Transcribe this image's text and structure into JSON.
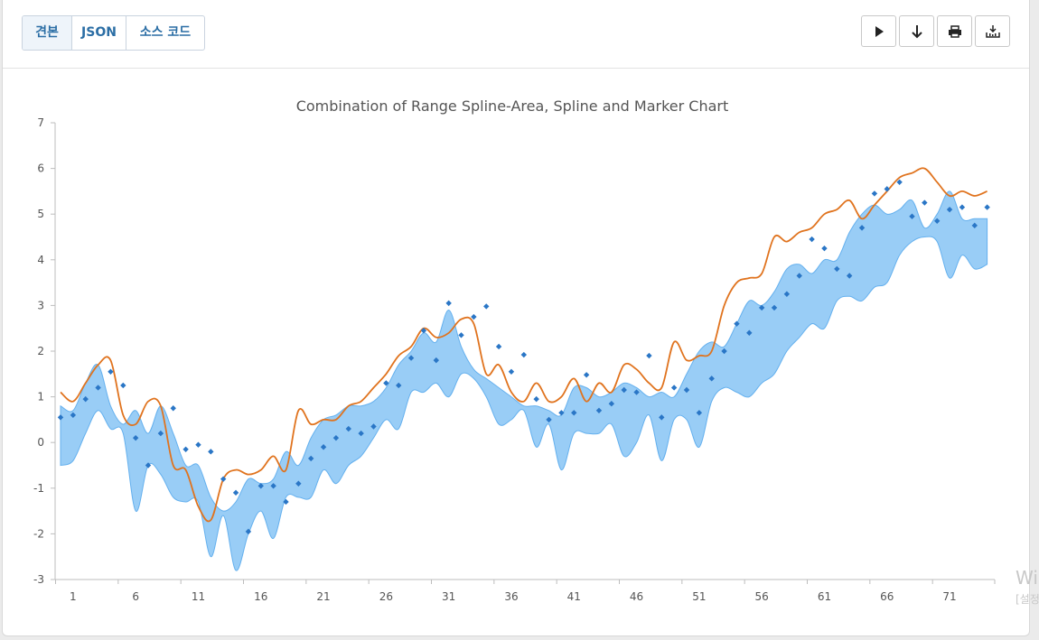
{
  "tabs": [
    {
      "label": "견본",
      "active": true
    },
    {
      "label": "JSON",
      "active": false
    },
    {
      "label": "소스 코드",
      "active": false
    }
  ],
  "toolbar": {
    "buttons": [
      {
        "name": "run-button",
        "icon": "play-icon"
      },
      {
        "name": "download-button",
        "icon": "arrow-down-icon"
      },
      {
        "name": "print-button",
        "icon": "printer-icon"
      },
      {
        "name": "export-button",
        "icon": "download-tray-icon"
      }
    ]
  },
  "watermark": {
    "line1": "Wi",
    "line2": "[설정"
  },
  "colors": {
    "area": "#99cdf6",
    "area_line": "#64b0ee",
    "spline": "#e0731e",
    "marker": "#2a76c6"
  },
  "chart_data": {
    "type": "combination",
    "title": "Combination of Range Spline-Area, Spline and Marker Chart",
    "xlim": [
      0,
      75
    ],
    "ylim": [
      -3,
      7
    ],
    "yticks": [
      -3,
      -2,
      -1,
      0,
      1,
      2,
      3,
      4,
      5,
      6,
      7
    ],
    "xticks": [
      1,
      6,
      11,
      16,
      21,
      26,
      31,
      36,
      41,
      46,
      51,
      56,
      61,
      66,
      71
    ],
    "x": [
      0,
      1,
      2,
      3,
      4,
      5,
      6,
      7,
      8,
      9,
      10,
      11,
      12,
      13,
      14,
      15,
      16,
      17,
      18,
      19,
      20,
      21,
      22,
      23,
      24,
      25,
      26,
      27,
      28,
      29,
      30,
      31,
      32,
      33,
      34,
      35,
      36,
      37,
      38,
      39,
      40,
      41,
      42,
      43,
      44,
      45,
      46,
      47,
      48,
      49,
      50,
      51,
      52,
      53,
      54,
      55,
      56,
      57,
      58,
      59,
      60,
      61,
      62,
      63,
      64,
      65,
      66,
      67,
      68,
      69,
      70,
      71,
      72,
      73,
      74
    ],
    "series": [
      {
        "type": "rangeSplineArea",
        "low": [
          -0.5,
          -0.4,
          0.2,
          0.7,
          0.3,
          0.2,
          -1.5,
          -0.5,
          -0.7,
          -1.2,
          -1.3,
          -1.3,
          -2.5,
          -1.6,
          -2.8,
          -2.0,
          -1.5,
          -2.1,
          -1.2,
          -1.2,
          -1.2,
          -0.6,
          -0.9,
          -0.5,
          -0.3,
          0.1,
          0.5,
          0.3,
          1.1,
          1.1,
          1.3,
          1.0,
          1.5,
          1.4,
          1.0,
          0.4,
          0.5,
          0.7,
          -0.1,
          0.4,
          -0.6,
          0.2,
          0.2,
          0.2,
          0.4,
          -0.3,
          0.0,
          0.6,
          -0.4,
          0.5,
          0.5,
          -0.1,
          0.9,
          1.2,
          1.1,
          1.0,
          1.3,
          1.5,
          2.0,
          2.3,
          2.6,
          2.5,
          3.1,
          3.2,
          3.1,
          3.4,
          3.5,
          4.1,
          4.4,
          4.5,
          4.4,
          3.6,
          4.1,
          3.8,
          3.9
        ],
        "high": [
          0.8,
          0.7,
          1.3,
          1.7,
          0.8,
          0.4,
          0.7,
          0.2,
          0.8,
          0.2,
          -0.5,
          -0.5,
          -1.2,
          -1.5,
          -1.3,
          -0.8,
          -0.9,
          -0.8,
          -0.2,
          -0.5,
          0.1,
          0.5,
          0.6,
          0.8,
          0.8,
          0.9,
          1.2,
          1.7,
          2.0,
          2.4,
          2.2,
          2.9,
          2.1,
          1.6,
          1.4,
          1.2,
          1.0,
          0.8,
          0.8,
          0.7,
          0.6,
          1.2,
          1.2,
          1.0,
          1.1,
          1.3,
          1.2,
          1.0,
          1.1,
          1.0,
          1.5,
          2.0,
          2.2,
          2.1,
          2.6,
          3.1,
          3.0,
          3.3,
          3.8,
          3.9,
          3.7,
          4.0,
          4.0,
          4.6,
          5.0,
          5.2,
          5.0,
          5.1,
          5.3,
          4.7,
          5.0,
          5.5,
          4.9,
          4.9,
          4.9
        ]
      },
      {
        "type": "spline",
        "values": [
          1.1,
          0.9,
          1.3,
          1.7,
          1.8,
          0.6,
          0.4,
          0.9,
          0.8,
          -0.5,
          -0.6,
          -1.4,
          -1.7,
          -0.8,
          -0.6,
          -0.7,
          -0.6,
          -0.3,
          -0.6,
          0.7,
          0.4,
          0.5,
          0.5,
          0.8,
          0.9,
          1.2,
          1.5,
          1.9,
          2.1,
          2.5,
          2.3,
          2.4,
          2.7,
          2.6,
          1.5,
          1.7,
          1.1,
          0.9,
          1.3,
          0.9,
          1.0,
          1.4,
          0.9,
          1.3,
          1.1,
          1.7,
          1.6,
          1.3,
          1.2,
          2.2,
          1.8,
          1.9,
          2.0,
          3.0,
          3.5,
          3.6,
          3.7,
          4.5,
          4.4,
          4.6,
          4.7,
          5.0,
          5.1,
          5.3,
          4.9,
          5.2,
          5.5,
          5.8,
          5.9,
          6.0,
          5.7,
          5.4,
          5.5,
          5.4,
          5.5
        ]
      },
      {
        "type": "marker",
        "values": [
          0.55,
          0.6,
          0.95,
          1.2,
          1.55,
          1.25,
          0.1,
          -0.5,
          0.2,
          0.75,
          -0.15,
          -0.05,
          -0.2,
          -0.8,
          -1.1,
          -1.95,
          -0.95,
          -0.95,
          -1.3,
          -0.9,
          -0.35,
          -0.1,
          0.1,
          0.3,
          0.2,
          0.35,
          1.3,
          1.25,
          1.85,
          2.45,
          1.8,
          3.05,
          2.35,
          2.75,
          2.98,
          2.1,
          1.55,
          1.92,
          0.95,
          0.5,
          0.65,
          0.65,
          1.48,
          0.7,
          0.85,
          1.15,
          1.1,
          1.9,
          0.55,
          1.2,
          1.15,
          0.65,
          1.4,
          2.0,
          2.6,
          2.4,
          2.95,
          2.95,
          3.25,
          3.65,
          4.45,
          4.25,
          3.8,
          3.65,
          4.7,
          5.45,
          5.55,
          5.7,
          4.95,
          5.25,
          4.85,
          5.1,
          5.15,
          4.75,
          5.15
        ]
      }
    ]
  }
}
